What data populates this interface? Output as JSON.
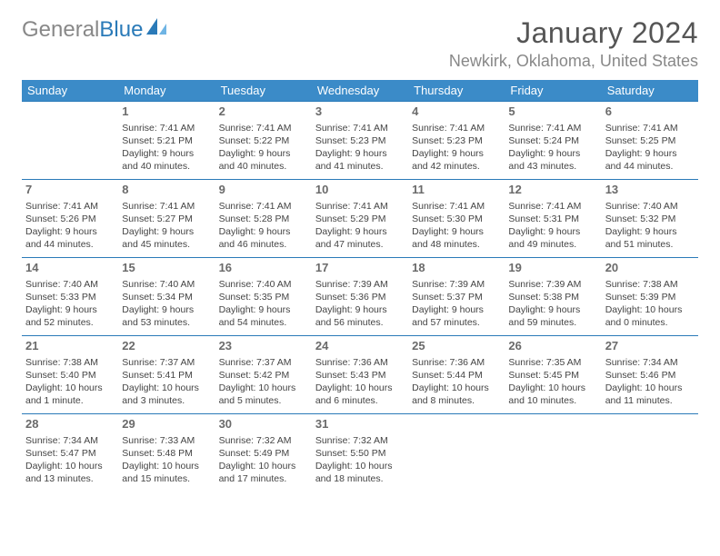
{
  "brand": {
    "part1": "General",
    "part2": "Blue"
  },
  "title": "January 2024",
  "location": "Newkirk, Oklahoma, United States",
  "colors": {
    "header_bg": "#3b8bc8",
    "header_text": "#ffffff",
    "rule": "#2a7ab8",
    "title_text": "#555555",
    "sub_text": "#888888",
    "brand_gray": "#888888",
    "brand_blue": "#2a7ab8"
  },
  "day_headers": [
    "Sunday",
    "Monday",
    "Tuesday",
    "Wednesday",
    "Thursday",
    "Friday",
    "Saturday"
  ],
  "weeks": [
    [
      null,
      {
        "n": "1",
        "sr": "Sunrise: 7:41 AM",
        "ss": "Sunset: 5:21 PM",
        "d1": "Daylight: 9 hours",
        "d2": "and 40 minutes."
      },
      {
        "n": "2",
        "sr": "Sunrise: 7:41 AM",
        "ss": "Sunset: 5:22 PM",
        "d1": "Daylight: 9 hours",
        "d2": "and 40 minutes."
      },
      {
        "n": "3",
        "sr": "Sunrise: 7:41 AM",
        "ss": "Sunset: 5:23 PM",
        "d1": "Daylight: 9 hours",
        "d2": "and 41 minutes."
      },
      {
        "n": "4",
        "sr": "Sunrise: 7:41 AM",
        "ss": "Sunset: 5:23 PM",
        "d1": "Daylight: 9 hours",
        "d2": "and 42 minutes."
      },
      {
        "n": "5",
        "sr": "Sunrise: 7:41 AM",
        "ss": "Sunset: 5:24 PM",
        "d1": "Daylight: 9 hours",
        "d2": "and 43 minutes."
      },
      {
        "n": "6",
        "sr": "Sunrise: 7:41 AM",
        "ss": "Sunset: 5:25 PM",
        "d1": "Daylight: 9 hours",
        "d2": "and 44 minutes."
      }
    ],
    [
      {
        "n": "7",
        "sr": "Sunrise: 7:41 AM",
        "ss": "Sunset: 5:26 PM",
        "d1": "Daylight: 9 hours",
        "d2": "and 44 minutes."
      },
      {
        "n": "8",
        "sr": "Sunrise: 7:41 AM",
        "ss": "Sunset: 5:27 PM",
        "d1": "Daylight: 9 hours",
        "d2": "and 45 minutes."
      },
      {
        "n": "9",
        "sr": "Sunrise: 7:41 AM",
        "ss": "Sunset: 5:28 PM",
        "d1": "Daylight: 9 hours",
        "d2": "and 46 minutes."
      },
      {
        "n": "10",
        "sr": "Sunrise: 7:41 AM",
        "ss": "Sunset: 5:29 PM",
        "d1": "Daylight: 9 hours",
        "d2": "and 47 minutes."
      },
      {
        "n": "11",
        "sr": "Sunrise: 7:41 AM",
        "ss": "Sunset: 5:30 PM",
        "d1": "Daylight: 9 hours",
        "d2": "and 48 minutes."
      },
      {
        "n": "12",
        "sr": "Sunrise: 7:41 AM",
        "ss": "Sunset: 5:31 PM",
        "d1": "Daylight: 9 hours",
        "d2": "and 49 minutes."
      },
      {
        "n": "13",
        "sr": "Sunrise: 7:40 AM",
        "ss": "Sunset: 5:32 PM",
        "d1": "Daylight: 9 hours",
        "d2": "and 51 minutes."
      }
    ],
    [
      {
        "n": "14",
        "sr": "Sunrise: 7:40 AM",
        "ss": "Sunset: 5:33 PM",
        "d1": "Daylight: 9 hours",
        "d2": "and 52 minutes."
      },
      {
        "n": "15",
        "sr": "Sunrise: 7:40 AM",
        "ss": "Sunset: 5:34 PM",
        "d1": "Daylight: 9 hours",
        "d2": "and 53 minutes."
      },
      {
        "n": "16",
        "sr": "Sunrise: 7:40 AM",
        "ss": "Sunset: 5:35 PM",
        "d1": "Daylight: 9 hours",
        "d2": "and 54 minutes."
      },
      {
        "n": "17",
        "sr": "Sunrise: 7:39 AM",
        "ss": "Sunset: 5:36 PM",
        "d1": "Daylight: 9 hours",
        "d2": "and 56 minutes."
      },
      {
        "n": "18",
        "sr": "Sunrise: 7:39 AM",
        "ss": "Sunset: 5:37 PM",
        "d1": "Daylight: 9 hours",
        "d2": "and 57 minutes."
      },
      {
        "n": "19",
        "sr": "Sunrise: 7:39 AM",
        "ss": "Sunset: 5:38 PM",
        "d1": "Daylight: 9 hours",
        "d2": "and 59 minutes."
      },
      {
        "n": "20",
        "sr": "Sunrise: 7:38 AM",
        "ss": "Sunset: 5:39 PM",
        "d1": "Daylight: 10 hours",
        "d2": "and 0 minutes."
      }
    ],
    [
      {
        "n": "21",
        "sr": "Sunrise: 7:38 AM",
        "ss": "Sunset: 5:40 PM",
        "d1": "Daylight: 10 hours",
        "d2": "and 1 minute."
      },
      {
        "n": "22",
        "sr": "Sunrise: 7:37 AM",
        "ss": "Sunset: 5:41 PM",
        "d1": "Daylight: 10 hours",
        "d2": "and 3 minutes."
      },
      {
        "n": "23",
        "sr": "Sunrise: 7:37 AM",
        "ss": "Sunset: 5:42 PM",
        "d1": "Daylight: 10 hours",
        "d2": "and 5 minutes."
      },
      {
        "n": "24",
        "sr": "Sunrise: 7:36 AM",
        "ss": "Sunset: 5:43 PM",
        "d1": "Daylight: 10 hours",
        "d2": "and 6 minutes."
      },
      {
        "n": "25",
        "sr": "Sunrise: 7:36 AM",
        "ss": "Sunset: 5:44 PM",
        "d1": "Daylight: 10 hours",
        "d2": "and 8 minutes."
      },
      {
        "n": "26",
        "sr": "Sunrise: 7:35 AM",
        "ss": "Sunset: 5:45 PM",
        "d1": "Daylight: 10 hours",
        "d2": "and 10 minutes."
      },
      {
        "n": "27",
        "sr": "Sunrise: 7:34 AM",
        "ss": "Sunset: 5:46 PM",
        "d1": "Daylight: 10 hours",
        "d2": "and 11 minutes."
      }
    ],
    [
      {
        "n": "28",
        "sr": "Sunrise: 7:34 AM",
        "ss": "Sunset: 5:47 PM",
        "d1": "Daylight: 10 hours",
        "d2": "and 13 minutes."
      },
      {
        "n": "29",
        "sr": "Sunrise: 7:33 AM",
        "ss": "Sunset: 5:48 PM",
        "d1": "Daylight: 10 hours",
        "d2": "and 15 minutes."
      },
      {
        "n": "30",
        "sr": "Sunrise: 7:32 AM",
        "ss": "Sunset: 5:49 PM",
        "d1": "Daylight: 10 hours",
        "d2": "and 17 minutes."
      },
      {
        "n": "31",
        "sr": "Sunrise: 7:32 AM",
        "ss": "Sunset: 5:50 PM",
        "d1": "Daylight: 10 hours",
        "d2": "and 18 minutes."
      },
      null,
      null,
      null
    ]
  ]
}
